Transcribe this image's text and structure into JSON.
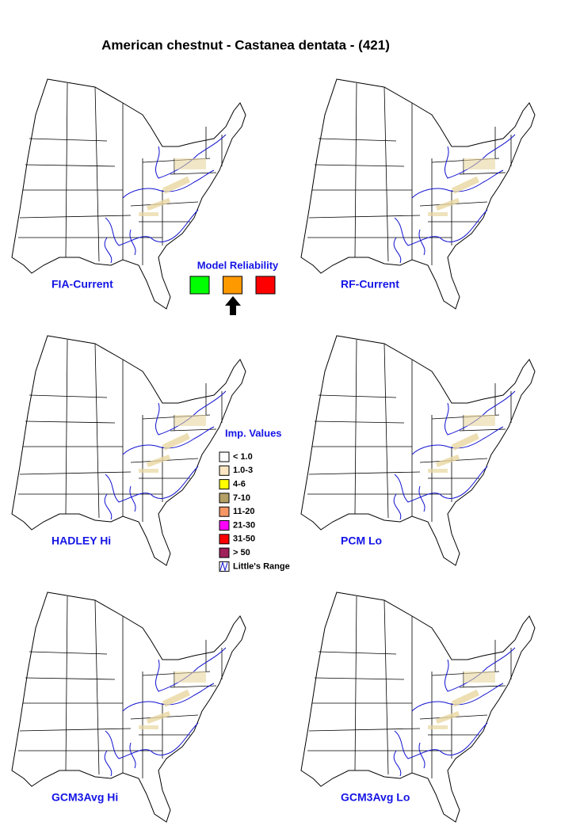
{
  "title": "American chestnut - Castanea dentata - (421)",
  "panels": [
    {
      "label": "FIA-Current"
    },
    {
      "label": "RF-Current"
    },
    {
      "label": "HADLEY Hi"
    },
    {
      "label": "PCM Lo"
    },
    {
      "label": "GCM3Avg Hi"
    },
    {
      "label": "GCM3Avg Lo"
    }
  ],
  "model_reliability": {
    "title": "Model Reliability",
    "colors": [
      "#00ff00",
      "#ff9900",
      "#ff0000"
    ]
  },
  "legend": {
    "title": "Imp. Values",
    "items": [
      {
        "label": "< 1.0",
        "color": "#ffffff"
      },
      {
        "label": "1.0-3",
        "color": "#fde7c2"
      },
      {
        "label": "4-6",
        "color": "#ffff00"
      },
      {
        "label": "7-10",
        "color": "#b4a064"
      },
      {
        "label": "11-20",
        "color": "#f59664"
      },
      {
        "label": "21-30",
        "color": "#ff00ff"
      },
      {
        "label": "31-50",
        "color": "#ff0000"
      },
      {
        "label": "> 50",
        "color": "#a0205a"
      }
    ],
    "range_label": "Little's Range"
  }
}
